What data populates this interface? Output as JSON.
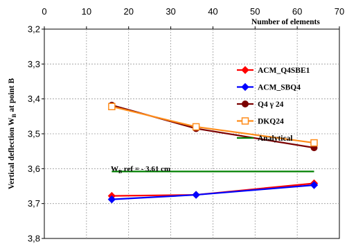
{
  "chart_data": {
    "type": "line",
    "xlabel": "Number of elements",
    "ylabel_main": "Vertical deflection W",
    "ylabel_sub": "B",
    "ylabel_tail": " at  point B",
    "xlim": [
      0,
      70
    ],
    "ylim": [
      3.8,
      3.2
    ],
    "y_inverted": true,
    "x_ticks": [
      "0",
      "10",
      "20",
      "30",
      "40",
      "50",
      "60",
      "70"
    ],
    "x_tick_values": [
      0,
      10,
      20,
      30,
      40,
      50,
      60,
      70
    ],
    "y_ticks": [
      "3,2",
      "3,3",
      "3,4",
      "3,5",
      "3,6",
      "3,7",
      "3,8"
    ],
    "y_tick_values": [
      3.2,
      3.3,
      3.4,
      3.5,
      3.6,
      3.7,
      3.8
    ],
    "grid": true,
    "legend_position": "right",
    "annotation": {
      "prefix": "W",
      "sub": "B",
      "text": " ref = - 3.61 cm"
    },
    "series": [
      {
        "name": "ACM_Q4SBE1",
        "color": "#ff0000",
        "marker": "diamond",
        "x": [
          16,
          36,
          64
        ],
        "y": [
          3.678,
          3.675,
          3.642
        ]
      },
      {
        "name": "ACM_SBQ4",
        "color": "#0000ff",
        "marker": "diamond",
        "x": [
          16,
          36,
          64
        ],
        "y": [
          3.688,
          3.675,
          3.647
        ]
      },
      {
        "name": "Q4 γ 24",
        "color": "#7b0000",
        "marker": "circle",
        "x": [
          16,
          36,
          64
        ],
        "y": [
          3.418,
          3.485,
          3.54
        ]
      },
      {
        "name": "DKQ24",
        "color": "#ff8c1a",
        "marker": "square-open",
        "x": [
          16,
          36,
          64
        ],
        "y": [
          3.422,
          3.48,
          3.526
        ]
      },
      {
        "name": "Analytical",
        "color": "#008000",
        "marker": "none",
        "x": [
          16,
          64
        ],
        "y": [
          3.608,
          3.608
        ]
      }
    ]
  }
}
